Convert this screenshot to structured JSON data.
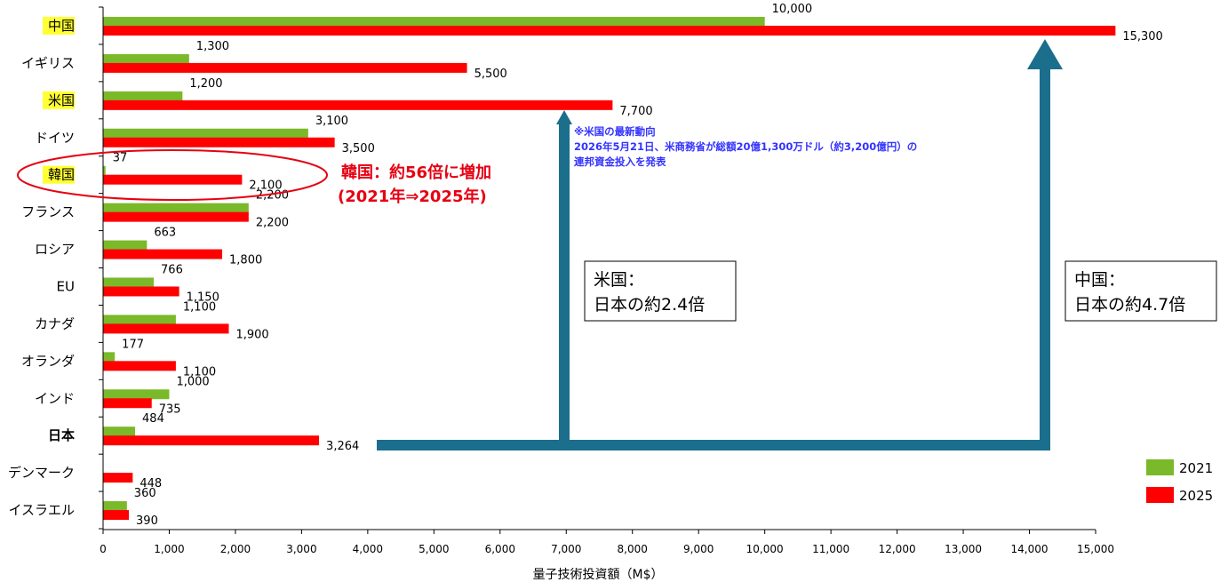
{
  "chart_data": {
    "type": "bar",
    "orientation": "horizontal",
    "categories": [
      "中国",
      "イギリス",
      "米国",
      "ドイツ",
      "韓国",
      "フランス",
      "ロシア",
      "EU",
      "カナダ",
      "オランダ",
      "インド",
      "日本",
      "デンマーク",
      "イスラエル"
    ],
    "highlighted_categories": [
      "中国",
      "米国",
      "韓国"
    ],
    "emphasized_category": "日本",
    "series": [
      {
        "name": "2021",
        "color": "#7ab929",
        "values": [
          10000,
          1300,
          1200,
          3100,
          37,
          2200,
          663,
          766,
          1100,
          177,
          1000,
          484,
          null,
          360
        ],
        "labels": [
          "10,000",
          "1,300",
          "1,200",
          "3,100",
          "37",
          "2,200",
          "663",
          "766",
          "1,100",
          "177",
          "1,000",
          "484",
          "",
          "360"
        ]
      },
      {
        "name": "2025",
        "color": "#ff0000",
        "values": [
          15300,
          5500,
          7700,
          3500,
          2100,
          2200,
          1800,
          1150,
          1900,
          1100,
          735,
          3264,
          448,
          390
        ],
        "labels": [
          "15,300",
          "5,500",
          "7,700",
          "3,500",
          "2,100",
          "2,200",
          "1,800",
          "1,150",
          "1,900",
          "1,100",
          "735",
          "3,264",
          "448",
          "390"
        ]
      }
    ],
    "xlabel": "量子技術投資額（M$）",
    "xlim": [
      0,
      15000
    ],
    "xticks": [
      0,
      1000,
      2000,
      3000,
      4000,
      5000,
      6000,
      7000,
      8000,
      9000,
      10000,
      11000,
      12000,
      13000,
      14000,
      15000
    ],
    "xtick_labels": [
      "0",
      "1,000",
      "2,000",
      "3,000",
      "4,000",
      "5,000",
      "6,000",
      "7,000",
      "8,000",
      "9,000",
      "10,000",
      "11,000",
      "12,000",
      "13,000",
      "14,000",
      "15,000"
    ],
    "grid": false,
    "legend_position": "bottom-right",
    "annotations": {
      "korea_line1": "韓国：約56倍に増加",
      "korea_line2": "(2021年⇒2025年)",
      "us_note_line1": "※米国の最新動向",
      "us_note_line2": "2026年5月21日、米商務省が総額20億1,300万ドル（約3,200億円）の",
      "us_note_line3": "連邦資金投入を発表",
      "us_box_line1": "米国：",
      "us_box_line2": "日本の約2.4倍",
      "cn_box_line1": "中国：",
      "cn_box_line2": "日本の約4.7倍"
    },
    "colors": {
      "arrow": "#1b6e8c",
      "highlight": "#ffff33",
      "emphasis": "#e60012",
      "annot_blue": "#3333ff"
    }
  }
}
